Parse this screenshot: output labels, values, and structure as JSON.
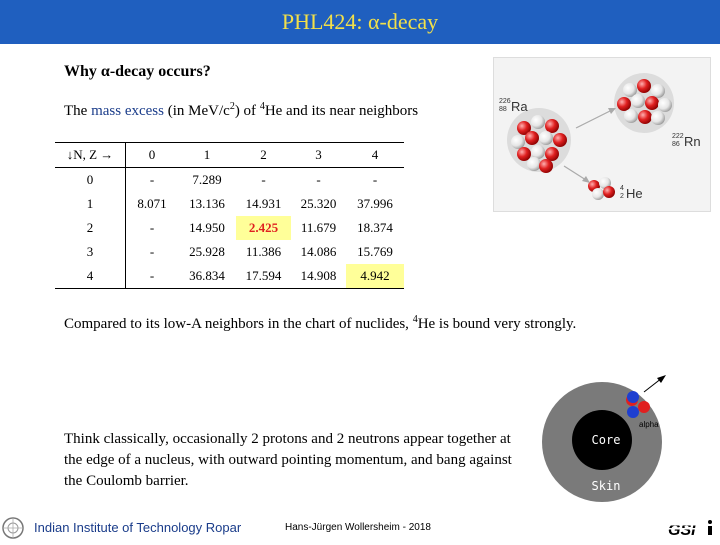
{
  "title": "PHL424: α-decay",
  "heading": "Why α-decay occurs?",
  "intro": {
    "before": "The ",
    "highlight": "mass excess",
    "mid1": " (in MeV/c",
    "sup1": "2",
    "mid2": ") of ",
    "sup2": "4",
    "after": "He and its near neighbors"
  },
  "table": {
    "header": [
      "↓N, Z →",
      "0",
      "1",
      "2",
      "3",
      "4"
    ],
    "rows": [
      [
        "0",
        "-",
        "7.289",
        "-",
        "-",
        "-"
      ],
      [
        "1",
        "8.071",
        "13.136",
        "14.931",
        "25.320",
        "37.996"
      ],
      [
        "2",
        "-",
        "14.950",
        "2.425",
        "11.679",
        "18.374"
      ],
      [
        "3",
        "-",
        "25.928",
        "11.386",
        "14.086",
        "15.769"
      ],
      [
        "4",
        "-",
        "36.834",
        "17.594",
        "14.908",
        "4.942"
      ]
    ]
  },
  "decay_figure": {
    "parent": {
      "mass": "226",
      "z": "88",
      "symbol": "Ra"
    },
    "daughter": {
      "mass": "222",
      "z": "86",
      "symbol": "Rn"
    },
    "alpha": {
      "mass": "4",
      "z": "2",
      "symbol": "He"
    }
  },
  "compared": {
    "before": "Compared to its low-A neighbors in the chart of nuclides, ",
    "sup": "4",
    "after": "He is bound very strongly."
  },
  "think": "Think classically, occasionally 2 protons and 2 neutrons appear together at the edge of a nucleus, with outward pointing momentum, and bang against the Coulomb barrier.",
  "nucleus_figure": {
    "core_label": "Core",
    "skin_label": "Skin",
    "alpha_label": "alpha"
  },
  "footer": {
    "institute": "Indian Institute of Technology Ropar",
    "author": "Hans-Jürgen Wollersheim - 2018",
    "gsi_logo": "GSI"
  },
  "colors": {
    "title_bar": "#1f5fbf",
    "title_text": "#f2e04a",
    "highlight_yellow": "#ffff99",
    "red_value": "#e02020",
    "proton": "#e02020",
    "neutron": "#1e3fd0"
  }
}
